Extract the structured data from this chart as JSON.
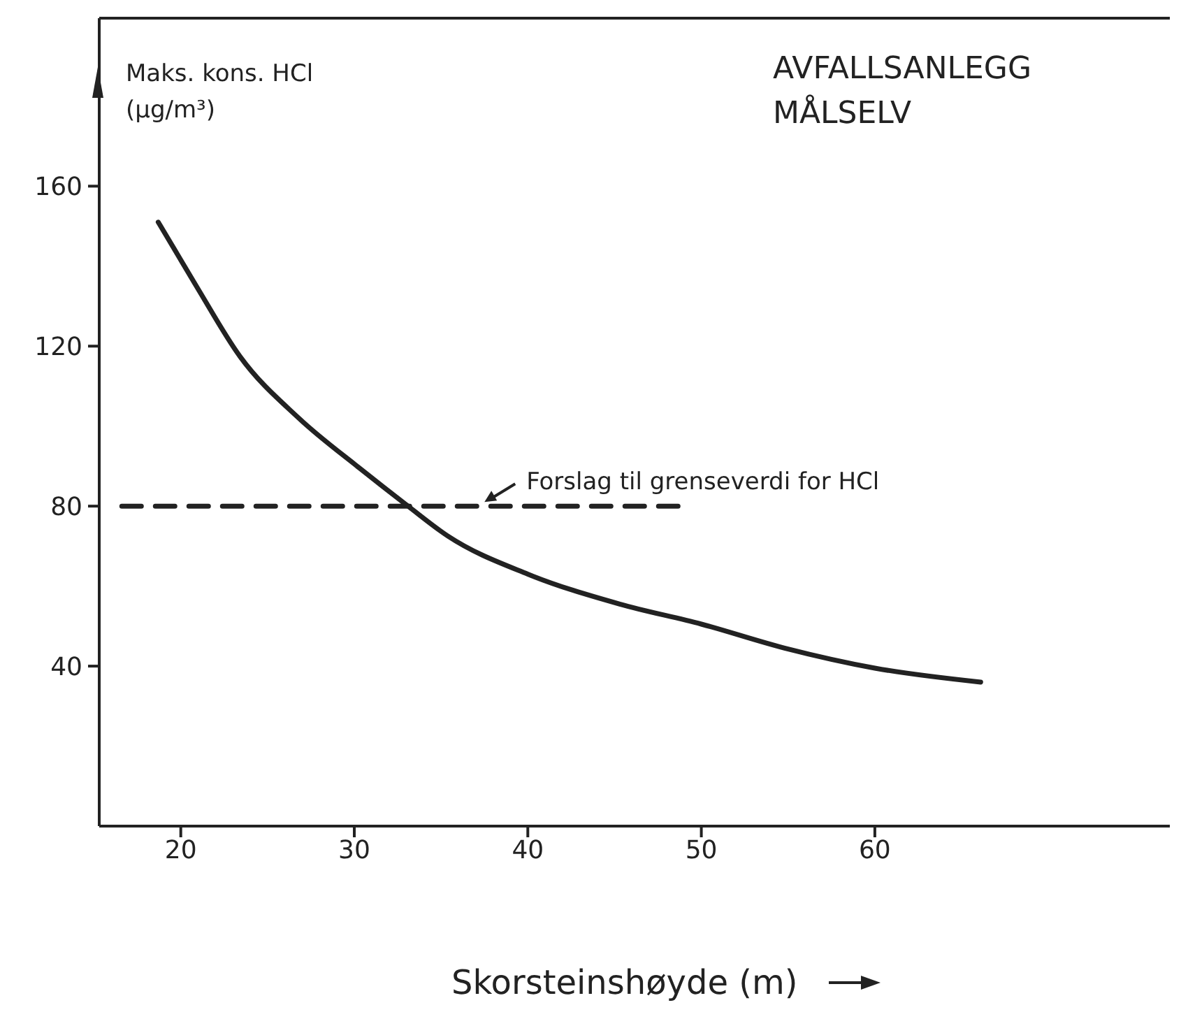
{
  "chart_data": {
    "type": "line",
    "title": "AVFALLSANLEGG\nMÅLSELV",
    "xlabel": "Skorsteinshøyde (m)",
    "ylabel": "Maks. kons. HCl\n(µg/m³)",
    "xlim": [
      15.3,
      77
    ],
    "xticks": [
      20,
      30,
      40,
      50,
      60
    ],
    "ylim": [
      0,
      202
    ],
    "yticks": [
      40,
      80,
      120,
      160
    ],
    "grid": false,
    "legend": false,
    "marker": "none",
    "series": [
      {
        "x": [
          18.7,
          20.9,
          23.4,
          26.8,
          30.3,
          33.1,
          35.4,
          40,
          45.3,
          50,
          54.8,
          60,
          66.1
        ],
        "values": [
          151,
          135,
          117.5,
          102,
          89.5,
          80,
          72.5,
          63,
          55.5,
          50.5,
          44.5,
          39.5,
          36
        ],
        "color": "#222222",
        "line_style": "solid"
      },
      {
        "x": [
          16.6,
          48.9
        ],
        "values": [
          80,
          80
        ],
        "color": "#222222",
        "line_style": "dashed"
      }
    ],
    "annotations": [
      {
        "text": "Forslag til grenseverdi for HCl",
        "x": 37.5,
        "y": 80
      }
    ]
  }
}
